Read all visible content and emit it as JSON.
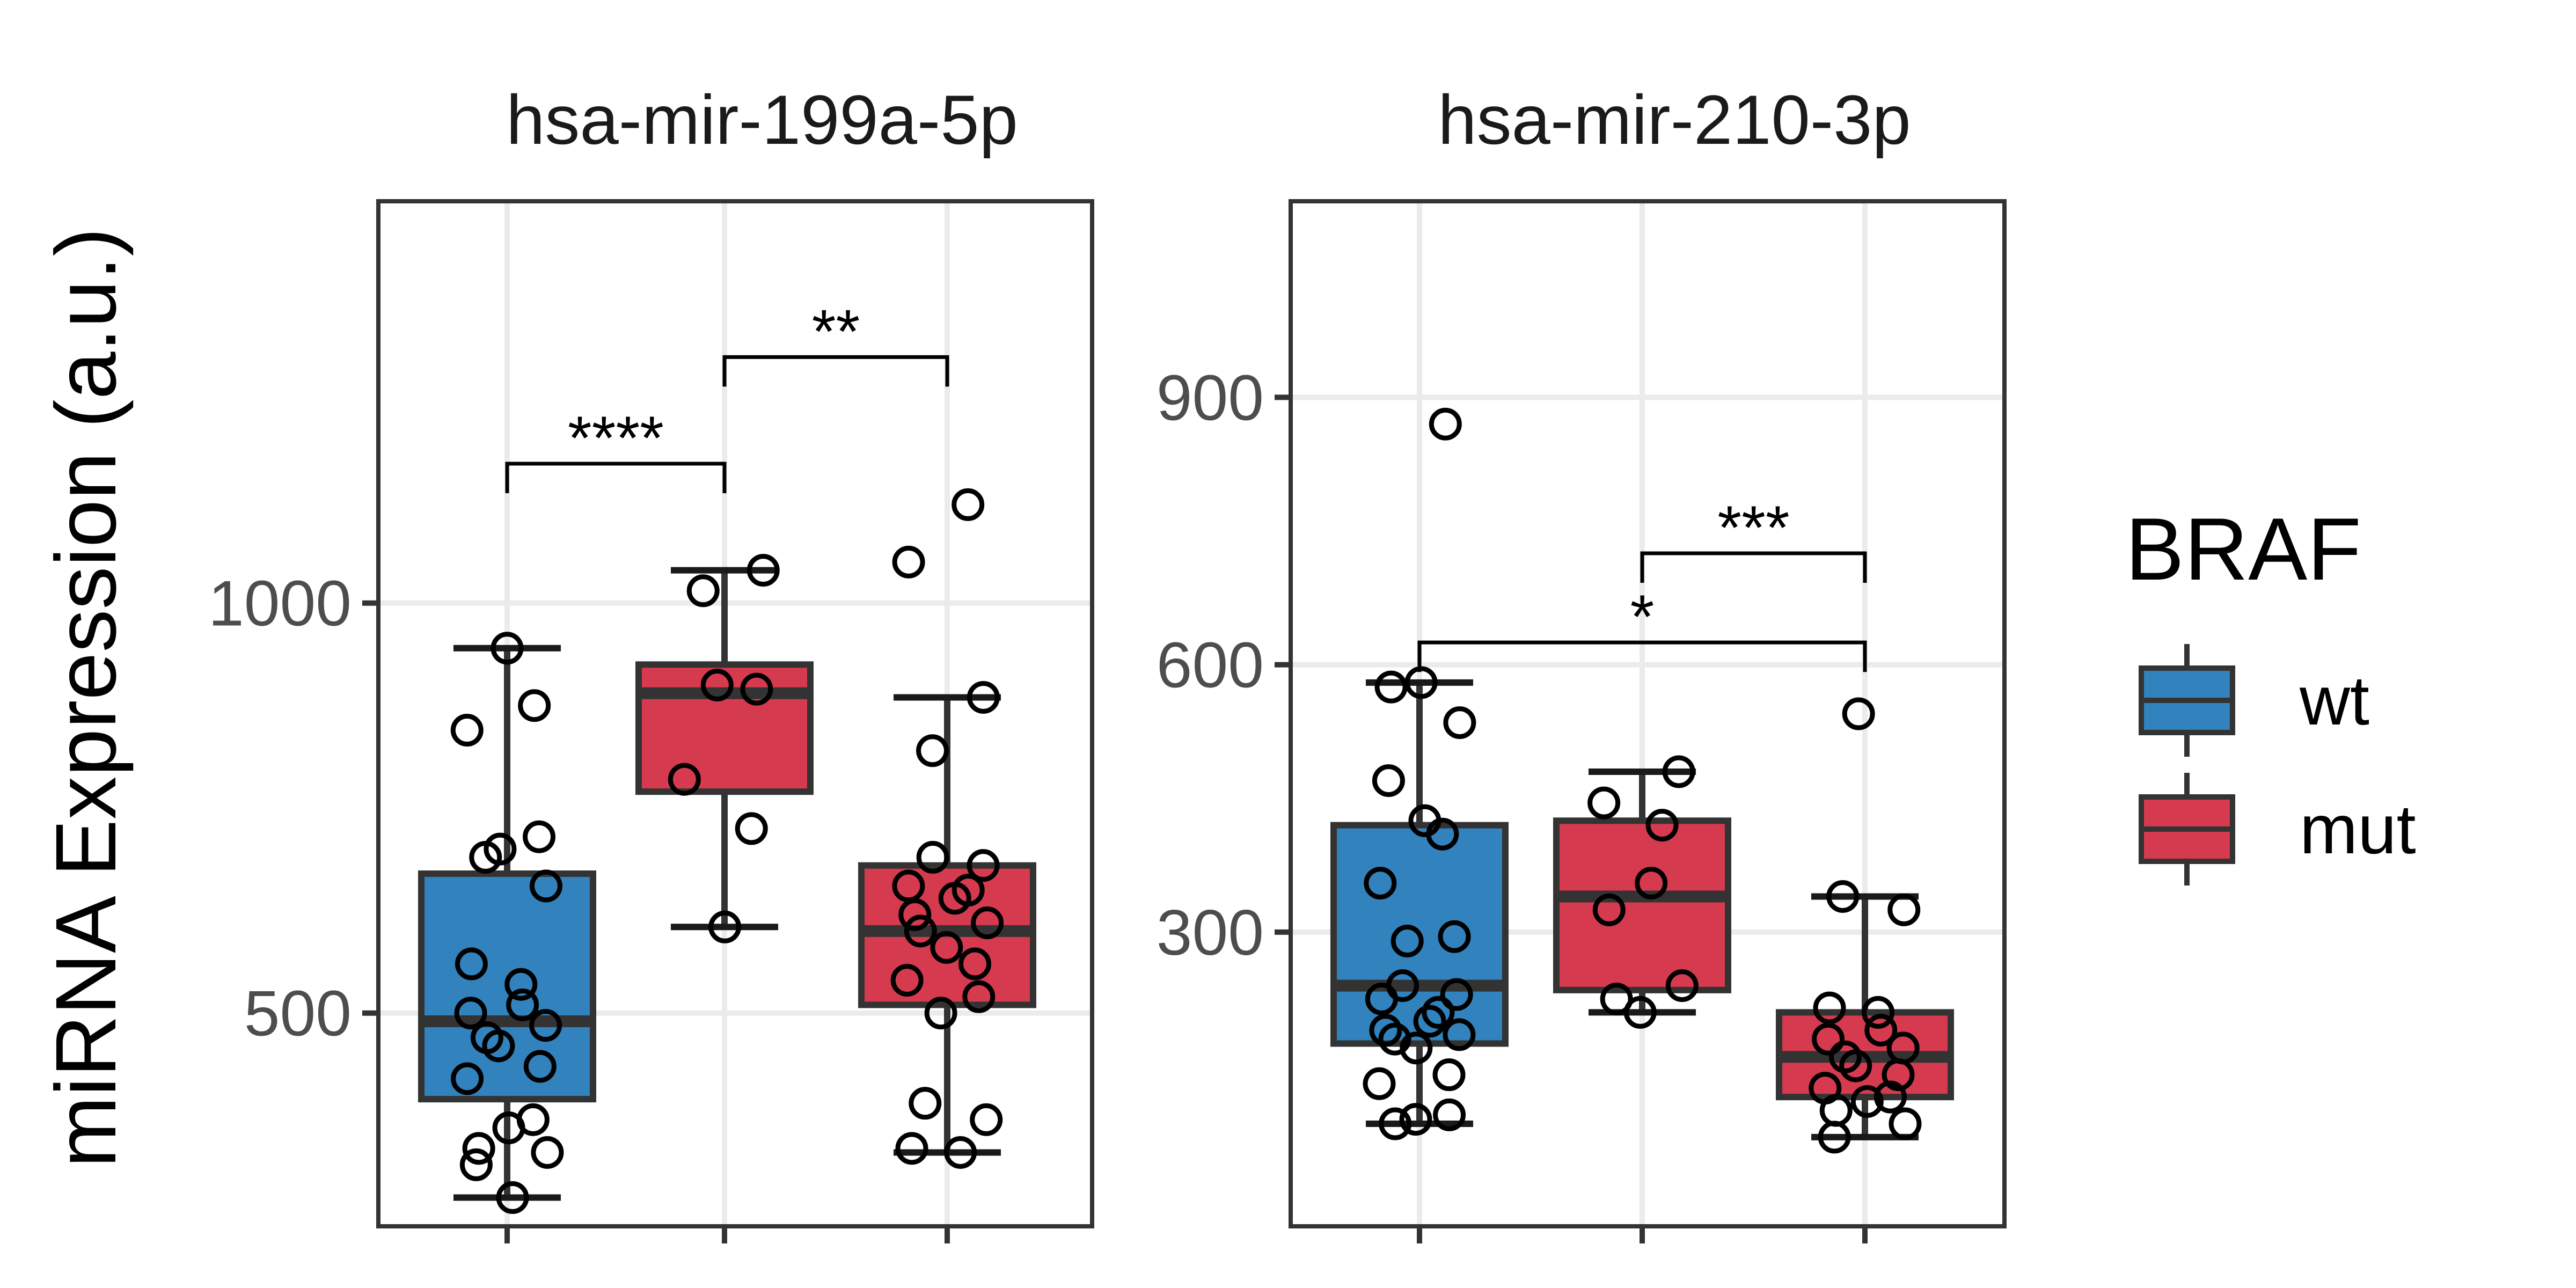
{
  "chart_data": {
    "type": "box",
    "ylabel": "miRNA Expression (a.u.)",
    "legend": {
      "title": "BRAF",
      "position": "right",
      "entries": [
        {
          "label": "wt",
          "color": "#3182bd"
        },
        {
          "label": "mut",
          "color": "#d63a4f"
        }
      ]
    },
    "grid": true,
    "panels": [
      {
        "title": "hsa-mir-199a-5p",
        "ylim": [
          240,
          1490
        ],
        "yticks": [
          500,
          1000
        ],
        "groups": [
          {
            "fill": "wt",
            "q1": 395,
            "median": 490,
            "q3": 670,
            "whisker_low": 275,
            "whisker_high": 945,
            "points": [
              945,
              875,
              845,
              715,
              700,
              690,
              655,
              560,
              535,
              510,
              500,
              485,
              470,
              460,
              435,
              420,
              370,
              360,
              335,
              330,
              315,
              275
            ]
          },
          {
            "fill": "mut",
            "q1": 770,
            "median": 890,
            "q3": 925,
            "whisker_low": 605,
            "whisker_high": 1040,
            "points": [
              1040,
              1015,
              900,
              895,
              785,
              725,
              605
            ]
          },
          {
            "fill": "mut",
            "q1": 510,
            "median": 600,
            "q3": 680,
            "whisker_low": 330,
            "whisker_high": 885,
            "points": [
              1120,
              1050,
              885,
              820,
              690,
              680,
              655,
              650,
              640,
              620,
              610,
              600,
              580,
              560,
              540,
              520,
              500,
              390,
              370,
              335,
              330
            ]
          }
        ],
        "significance": [
          {
            "from": 0,
            "to": 1,
            "label": "****",
            "y": 1170
          },
          {
            "from": 1,
            "to": 2,
            "label": "**",
            "y": 1300
          }
        ]
      },
      {
        "title": "hsa-mir-210-3p",
        "ylim": [
          -30,
          1120
        ],
        "yticks": [
          300,
          600,
          900
        ],
        "groups": [
          {
            "fill": "wt",
            "q1": 175,
            "median": 240,
            "q3": 420,
            "whisker_low": 85,
            "whisker_high": 580,
            "points": [
              870,
              580,
              575,
              535,
              470,
              425,
              410,
              355,
              295,
              290,
              240,
              230,
              225,
              210,
              200,
              190,
              185,
              180,
              170,
              140,
              130,
              95,
              90,
              85
            ]
          },
          {
            "fill": "mut",
            "q1": 235,
            "median": 340,
            "q3": 425,
            "whisker_low": 210,
            "whisker_high": 480,
            "points": [
              480,
              445,
              420,
              355,
              325,
              240,
              225,
              210
            ]
          },
          {
            "fill": "mut",
            "q1": 115,
            "median": 160,
            "q3": 210,
            "whisker_low": 70,
            "whisker_high": 340,
            "points": [
              545,
              340,
              325,
              215,
              210,
              190,
              180,
              170,
              160,
              150,
              140,
              125,
              115,
              110,
              100,
              85,
              70
            ]
          }
        ],
        "significance": [
          {
            "from": 0,
            "to": 2,
            "label": "*",
            "y": 625
          },
          {
            "from": 1,
            "to": 2,
            "label": "***",
            "y": 725
          }
        ]
      }
    ]
  }
}
